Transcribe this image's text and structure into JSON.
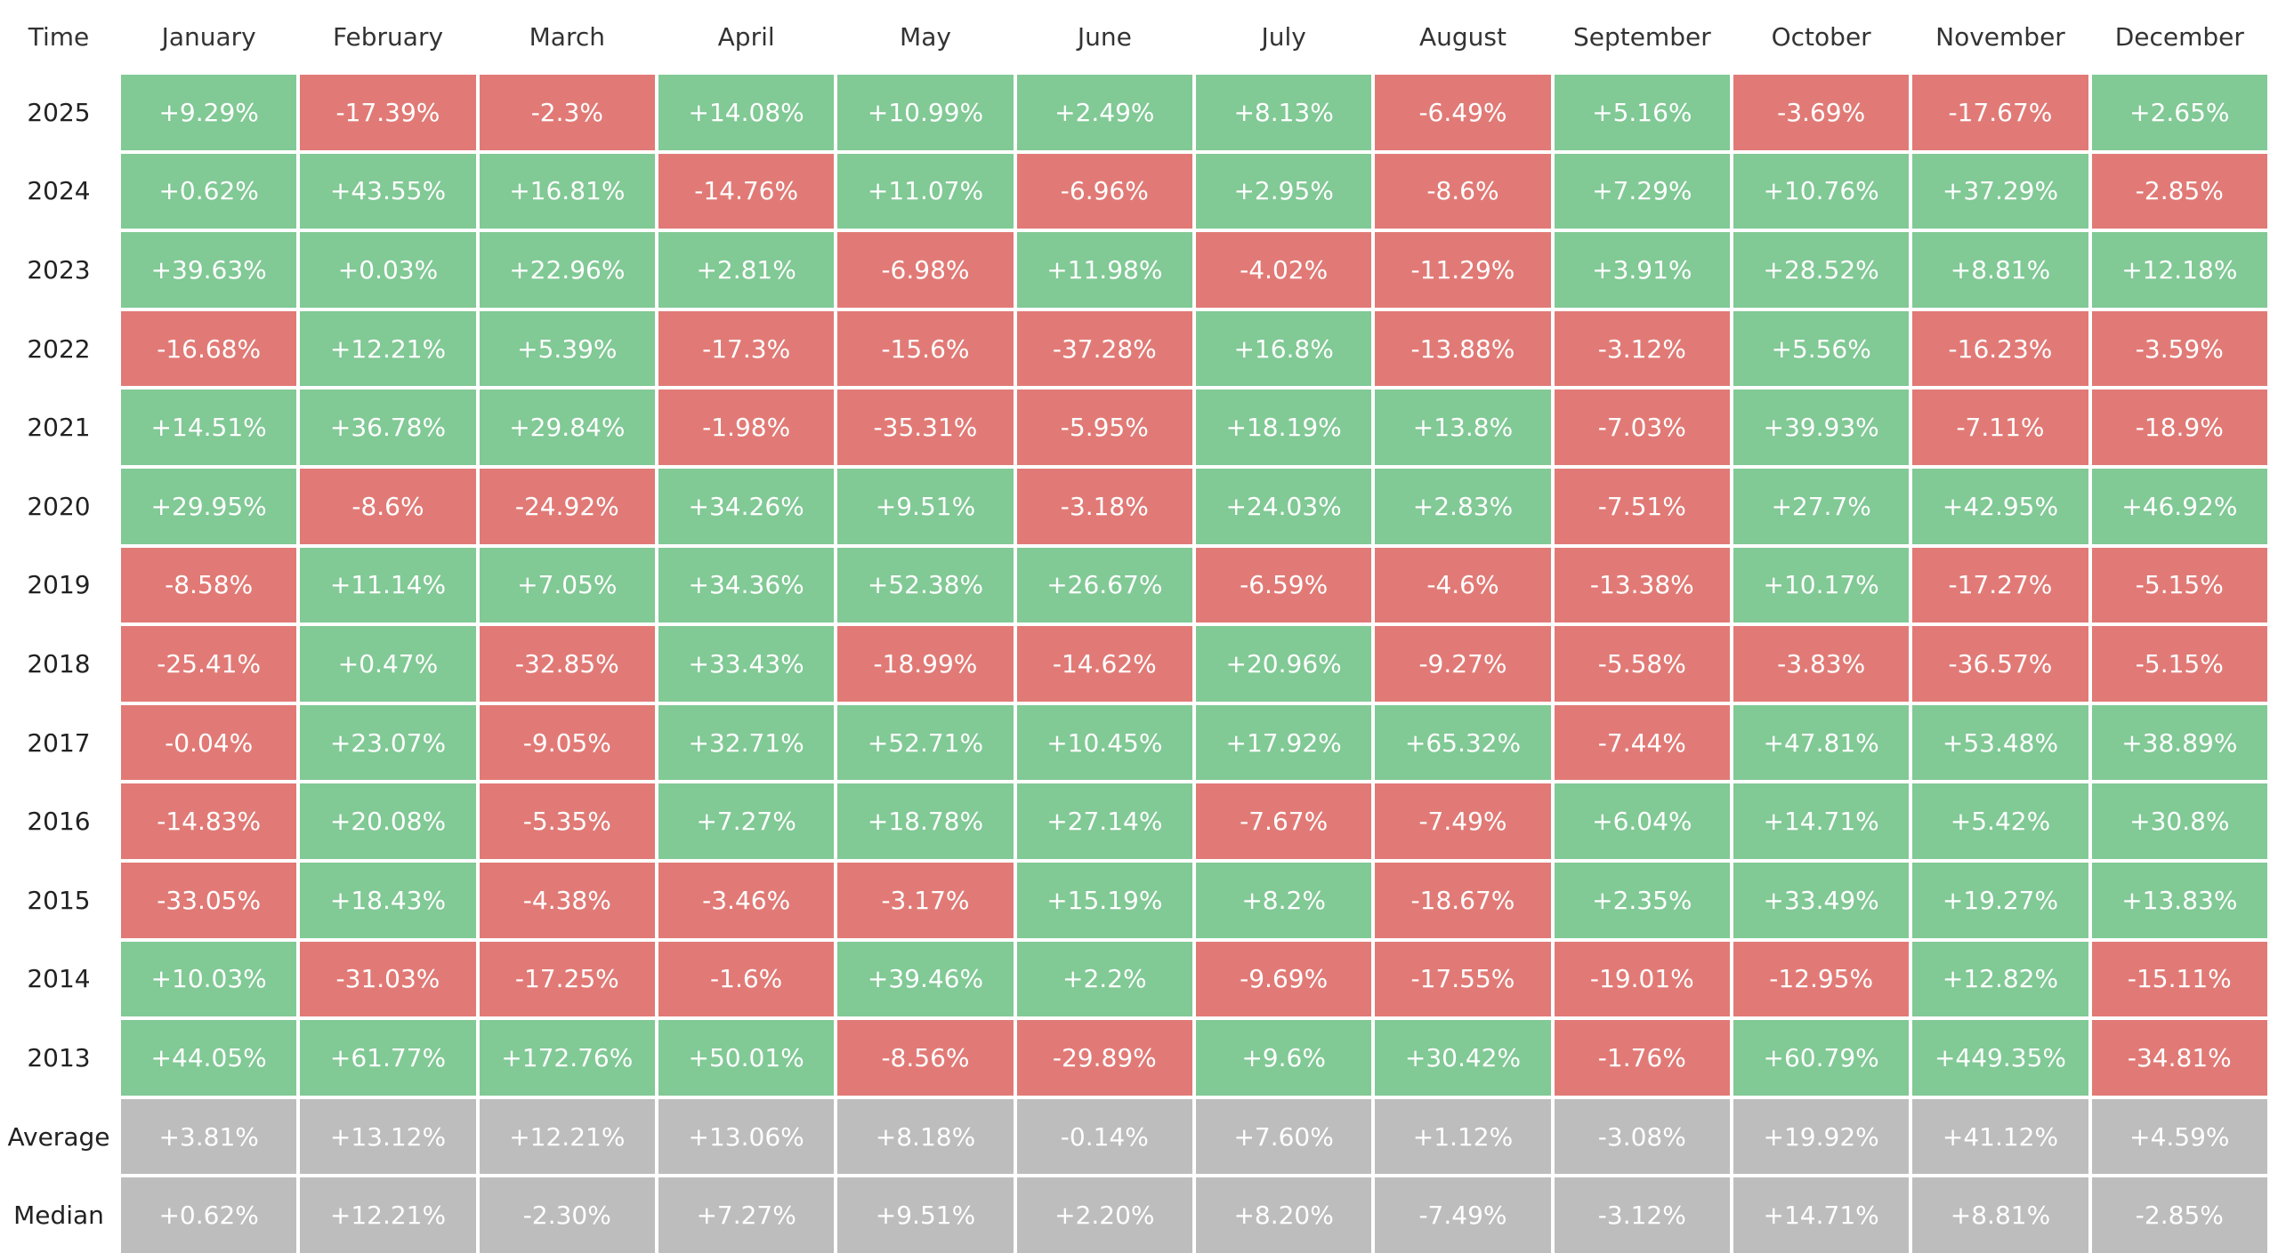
{
  "table": {
    "header": [
      "Time",
      "January",
      "February",
      "March",
      "April",
      "May",
      "June",
      "July",
      "August",
      "September",
      "October",
      "November",
      "December"
    ],
    "rows": [
      [
        "2025",
        "+9.29%",
        "-17.39%",
        "-2.3%",
        "+14.08%",
        "+10.99%",
        "+2.49%",
        "+8.13%",
        "-6.49%",
        "+5.16%",
        "-3.69%",
        "-17.67%",
        "+2.65%"
      ],
      [
        "2024",
        "+0.62%",
        "+43.55%",
        "+16.81%",
        "-14.76%",
        "+11.07%",
        "-6.96%",
        "+2.95%",
        "-8.6%",
        "+7.29%",
        "+10.76%",
        "+37.29%",
        "-2.85%"
      ],
      [
        "2023",
        "+39.63%",
        "+0.03%",
        "+22.96%",
        "+2.81%",
        "-6.98%",
        "+11.98%",
        "-4.02%",
        "-11.29%",
        "+3.91%",
        "+28.52%",
        "+8.81%",
        "+12.18%"
      ],
      [
        "2022",
        "-16.68%",
        "+12.21%",
        "+5.39%",
        "-17.3%",
        "-15.6%",
        "-37.28%",
        "+16.8%",
        "-13.88%",
        "-3.12%",
        "+5.56%",
        "-16.23%",
        "-3.59%"
      ],
      [
        "2021",
        "+14.51%",
        "+36.78%",
        "+29.84%",
        "-1.98%",
        "-35.31%",
        "-5.95%",
        "+18.19%",
        "+13.8%",
        "-7.03%",
        "+39.93%",
        "-7.11%",
        "-18.9%"
      ],
      [
        "2020",
        "+29.95%",
        "-8.6%",
        "-24.92%",
        "+34.26%",
        "+9.51%",
        "-3.18%",
        "+24.03%",
        "+2.83%",
        "-7.51%",
        "+27.7%",
        "+42.95%",
        "+46.92%"
      ],
      [
        "2019",
        "-8.58%",
        "+11.14%",
        "+7.05%",
        "+34.36%",
        "+52.38%",
        "+26.67%",
        "-6.59%",
        "-4.6%",
        "-13.38%",
        "+10.17%",
        "-17.27%",
        "-5.15%"
      ],
      [
        "2018",
        "-25.41%",
        "+0.47%",
        "-32.85%",
        "+33.43%",
        "-18.99%",
        "-14.62%",
        "+20.96%",
        "-9.27%",
        "-5.58%",
        "-3.83%",
        "-36.57%",
        "-5.15%"
      ],
      [
        "2017",
        "-0.04%",
        "+23.07%",
        "-9.05%",
        "+32.71%",
        "+52.71%",
        "+10.45%",
        "+17.92%",
        "+65.32%",
        "-7.44%",
        "+47.81%",
        "+53.48%",
        "+38.89%"
      ],
      [
        "2016",
        "-14.83%",
        "+20.08%",
        "-5.35%",
        "+7.27%",
        "+18.78%",
        "+27.14%",
        "-7.67%",
        "-7.49%",
        "+6.04%",
        "+14.71%",
        "+5.42%",
        "+30.8%"
      ],
      [
        "2015",
        "-33.05%",
        "+18.43%",
        "-4.38%",
        "-3.46%",
        "-3.17%",
        "+15.19%",
        "+8.2%",
        "-18.67%",
        "+2.35%",
        "+33.49%",
        "+19.27%",
        "+13.83%"
      ],
      [
        "2014",
        "+10.03%",
        "-31.03%",
        "-17.25%",
        "-1.6%",
        "+39.46%",
        "+2.2%",
        "-9.69%",
        "-17.55%",
        "-19.01%",
        "-12.95%",
        "+12.82%",
        "-15.11%"
      ],
      [
        "2013",
        "+44.05%",
        "+61.77%",
        "+172.76%",
        "+50.01%",
        "-8.56%",
        "-29.89%",
        "+9.6%",
        "+30.42%",
        "-1.76%",
        "+60.79%",
        "+449.35%",
        "-34.81%"
      ]
    ],
    "summary": [
      [
        "Average",
        "+3.81%",
        "+13.12%",
        "+12.21%",
        "+13.06%",
        "+8.18%",
        "-0.14%",
        "+7.60%",
        "+1.12%",
        "-3.08%",
        "+19.92%",
        "+41.12%",
        "+4.59%"
      ],
      [
        "Median",
        "+0.62%",
        "+12.21%",
        "-2.30%",
        "+7.27%",
        "+9.51%",
        "+2.20%",
        "+8.20%",
        "-7.49%",
        "-3.12%",
        "+14.71%",
        "+8.81%",
        "-2.85%"
      ]
    ]
  }
}
